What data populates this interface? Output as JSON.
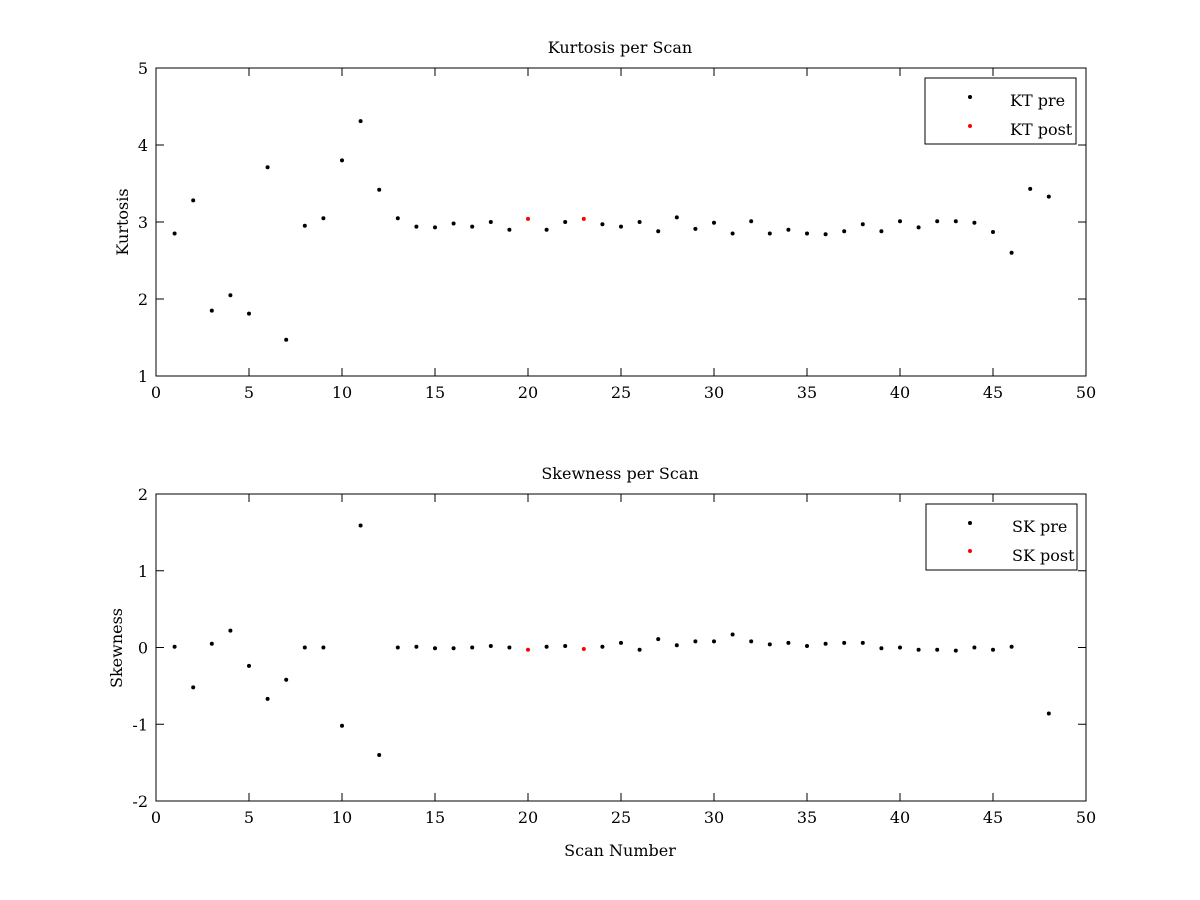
{
  "chart_data": [
    {
      "type": "scatter",
      "title": "Kurtosis per Scan",
      "xlabel": "",
      "ylabel": "Kurtosis",
      "xlim": [
        0,
        50
      ],
      "ylim": [
        1,
        5
      ],
      "xticks": [
        "0",
        "5",
        "10",
        "15",
        "20",
        "25",
        "30",
        "35",
        "40",
        "45",
        "50"
      ],
      "yticks": [
        "1",
        "2",
        "3",
        "4",
        "5"
      ],
      "grid": false,
      "legend_position": "top-right",
      "series": [
        {
          "name": "KT pre",
          "color": "#000000",
          "points": [
            [
              1,
              2.85
            ],
            [
              2,
              3.28
            ],
            [
              3,
              1.85
            ],
            [
              4,
              2.05
            ],
            [
              5,
              1.81
            ],
            [
              6,
              3.71
            ],
            [
              7,
              1.47
            ],
            [
              8,
              2.95
            ],
            [
              9,
              3.05
            ],
            [
              10,
              3.8
            ],
            [
              11,
              4.31
            ],
            [
              12,
              3.42
            ],
            [
              13,
              3.05
            ],
            [
              14,
              2.94
            ],
            [
              15,
              2.93
            ],
            [
              16,
              2.98
            ],
            [
              17,
              2.94
            ],
            [
              18,
              3.0
            ],
            [
              19,
              2.9
            ],
            [
              21,
              2.9
            ],
            [
              22,
              3.0
            ],
            [
              24,
              2.97
            ],
            [
              25,
              2.94
            ],
            [
              26,
              3.0
            ],
            [
              27,
              2.88
            ],
            [
              28,
              3.06
            ],
            [
              29,
              2.91
            ],
            [
              30,
              2.99
            ],
            [
              31,
              2.85
            ],
            [
              32,
              3.01
            ],
            [
              33,
              2.85
            ],
            [
              34,
              2.9
            ],
            [
              35,
              2.85
            ],
            [
              36,
              2.84
            ],
            [
              37,
              2.88
            ],
            [
              38,
              2.97
            ],
            [
              39,
              2.88
            ],
            [
              40,
              3.01
            ],
            [
              41,
              2.93
            ],
            [
              42,
              3.01
            ],
            [
              43,
              3.01
            ],
            [
              44,
              2.99
            ],
            [
              45,
              2.87
            ],
            [
              46,
              2.6
            ],
            [
              47,
              3.43
            ],
            [
              48,
              3.33
            ]
          ]
        },
        {
          "name": "KT post",
          "color": "#ff0000",
          "points": [
            [
              20,
              3.04
            ],
            [
              23,
              3.04
            ]
          ]
        }
      ]
    },
    {
      "type": "scatter",
      "title": "Skewness per Scan",
      "xlabel": "Scan Number",
      "ylabel": "Skewness",
      "xlim": [
        0,
        50
      ],
      "ylim": [
        -2,
        2
      ],
      "xticks": [
        "0",
        "5",
        "10",
        "15",
        "20",
        "25",
        "30",
        "35",
        "40",
        "45",
        "50"
      ],
      "yticks": [
        "-2",
        "-1",
        "0",
        "1",
        "2"
      ],
      "grid": false,
      "legend_position": "top-right",
      "series": [
        {
          "name": "SK pre",
          "color": "#000000",
          "points": [
            [
              1,
              0.01
            ],
            [
              2,
              -0.52
            ],
            [
              3,
              0.05
            ],
            [
              4,
              0.22
            ],
            [
              5,
              -0.24
            ],
            [
              6,
              -0.67
            ],
            [
              7,
              -0.42
            ],
            [
              8,
              0.0
            ],
            [
              9,
              0.0
            ],
            [
              10,
              -1.02
            ],
            [
              11,
              1.59
            ],
            [
              12,
              -1.4
            ],
            [
              13,
              0.0
            ],
            [
              14,
              0.01
            ],
            [
              15,
              -0.01
            ],
            [
              16,
              -0.01
            ],
            [
              17,
              0.0
            ],
            [
              18,
              0.02
            ],
            [
              19,
              0.0
            ],
            [
              21,
              0.01
            ],
            [
              22,
              0.02
            ],
            [
              24,
              0.01
            ],
            [
              25,
              0.06
            ],
            [
              26,
              -0.03
            ],
            [
              27,
              0.11
            ],
            [
              28,
              0.03
            ],
            [
              29,
              0.08
            ],
            [
              30,
              0.08
            ],
            [
              31,
              0.17
            ],
            [
              32,
              0.08
            ],
            [
              33,
              0.04
            ],
            [
              34,
              0.06
            ],
            [
              35,
              0.02
            ],
            [
              36,
              0.05
            ],
            [
              37,
              0.06
            ],
            [
              38,
              0.06
            ],
            [
              39,
              -0.01
            ],
            [
              40,
              0.0
            ],
            [
              41,
              -0.03
            ],
            [
              42,
              -0.03
            ],
            [
              43,
              -0.04
            ],
            [
              44,
              0.0
            ],
            [
              45,
              -0.03
            ],
            [
              46,
              0.01
            ],
            [
              48,
              -0.86
            ]
          ]
        },
        {
          "name": "SK post",
          "color": "#ff0000",
          "points": [
            [
              20,
              -0.03
            ],
            [
              23,
              -0.02
            ]
          ]
        }
      ]
    }
  ]
}
